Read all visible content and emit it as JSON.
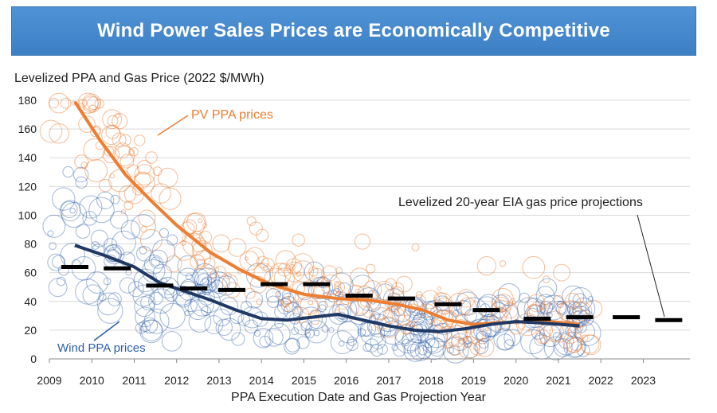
{
  "header": {
    "title": "Wind Power Sales Prices are Economically Competitive"
  },
  "chart_data": {
    "type": "scatter",
    "title": "Wind Power Sales Prices are Economically Competitive",
    "ylabel": "Levelized PPA and Gas Price (2022 $/MWh)",
    "xlabel": "PPA Execution Date and Gas Projection Year",
    "xlim": [
      2009,
      2024.1
    ],
    "ylim": [
      0,
      180
    ],
    "xticks": [
      "2009",
      "2010",
      "2011",
      "2012",
      "2013",
      "2014",
      "2015",
      "2016",
      "2017",
      "2018",
      "2019",
      "2020",
      "2021",
      "2022",
      "2023"
    ],
    "yticks": [
      "0",
      "20",
      "40",
      "60",
      "80",
      "100",
      "120",
      "140",
      "160",
      "180"
    ],
    "grid": true,
    "colors": {
      "pv": "#ed7d31",
      "wind": "#2e5fa8",
      "wind_line": "#1f3864",
      "gas": "#000000",
      "pv_label": "#ed7d31",
      "wind_label": "#2e5fa8"
    },
    "annotations": {
      "pv": "PV PPA prices",
      "wind": "Wind PPA prices",
      "gas": "Levelized 20-year EIA gas price projections"
    },
    "series": [
      {
        "name": "PV PPA prices",
        "kind": "line",
        "x": [
          2009.6,
          2010.2,
          2010.8,
          2011.4,
          2012.0,
          2012.8,
          2013.5,
          2014.2,
          2015.0,
          2015.8,
          2016.5,
          2017.2,
          2017.8,
          2018.4,
          2019.0,
          2019.5,
          2020.2,
          2020.8,
          2021.5
        ],
        "y": [
          179,
          152,
          128,
          110,
          93,
          74,
          62,
          52,
          45,
          42,
          41,
          38,
          34,
          27,
          24,
          25,
          26,
          26,
          24
        ]
      },
      {
        "name": "Wind PPA prices",
        "kind": "line",
        "x": [
          2009.6,
          2010.3,
          2011.0,
          2011.6,
          2012.2,
          2012.8,
          2013.4,
          2014.0,
          2014.6,
          2015.2,
          2015.8,
          2016.4,
          2017.0,
          2017.6,
          2018.2,
          2018.8,
          2019.4,
          2020.0,
          2020.6,
          2021.5
        ],
        "y": [
          79,
          72,
          64,
          53,
          47,
          41,
          34,
          28,
          27,
          29,
          31,
          27,
          23,
          20,
          19,
          21,
          24,
          26,
          25,
          23
        ]
      },
      {
        "name": "Levelized 20-year EIA gas price projections",
        "kind": "segments",
        "x": [
          2009.6,
          2010.6,
          2011.6,
          2012.4,
          2013.3,
          2014.3,
          2015.3,
          2016.3,
          2017.3,
          2018.4,
          2019.3,
          2020.5,
          2021.5,
          2022.6,
          2023.6
        ],
        "y": [
          64,
          63,
          51,
          49,
          48,
          52,
          52,
          44,
          42,
          38,
          34,
          28,
          29,
          29,
          27
        ]
      }
    ]
  }
}
